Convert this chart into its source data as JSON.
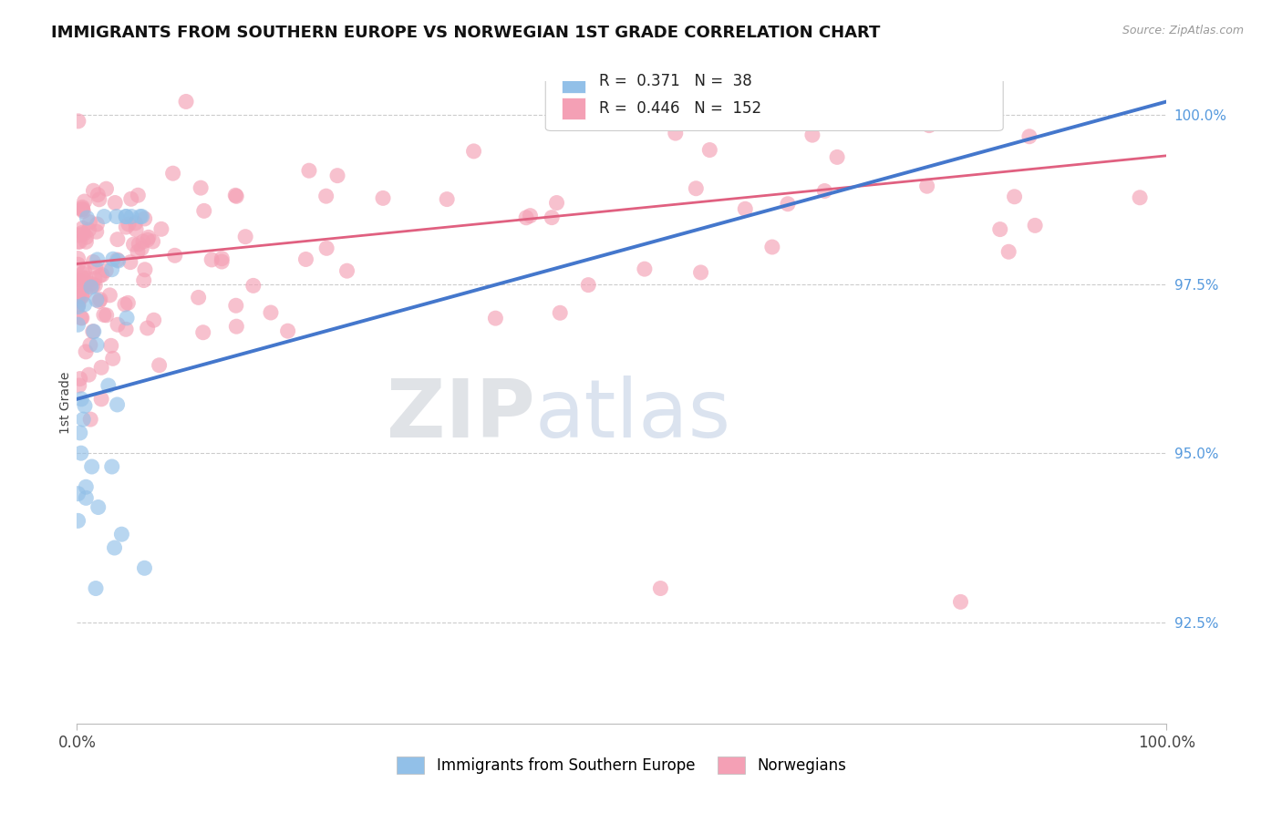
{
  "title": "IMMIGRANTS FROM SOUTHERN EUROPE VS NORWEGIAN 1ST GRADE CORRELATION CHART",
  "source": "Source: ZipAtlas.com",
  "ylabel": "1st Grade",
  "legend_blue_label": "Immigrants from Southern Europe",
  "legend_pink_label": "Norwegians",
  "blue_R": 0.371,
  "blue_N": 38,
  "pink_R": 0.446,
  "pink_N": 152,
  "blue_color": "#92c0e8",
  "pink_color": "#f4a0b5",
  "blue_line_color": "#4477cc",
  "pink_line_color": "#e06080",
  "watermark_zip": "ZIP",
  "watermark_atlas": "atlas",
  "xlim": [
    0.0,
    1.0
  ],
  "ylim": [
    0.91,
    1.005
  ],
  "ytick_vals": [
    1.0,
    0.975,
    0.95,
    0.925
  ],
  "ytick_labels": [
    "100.0%",
    "97.5%",
    "95.0%",
    "92.5%"
  ],
  "blue_line_x0": 0.0,
  "blue_line_y0": 0.958,
  "blue_line_x1": 1.0,
  "blue_line_y1": 1.002,
  "pink_line_x0": 0.0,
  "pink_line_y0": 0.978,
  "pink_line_x1": 1.0,
  "pink_line_y1": 0.994
}
